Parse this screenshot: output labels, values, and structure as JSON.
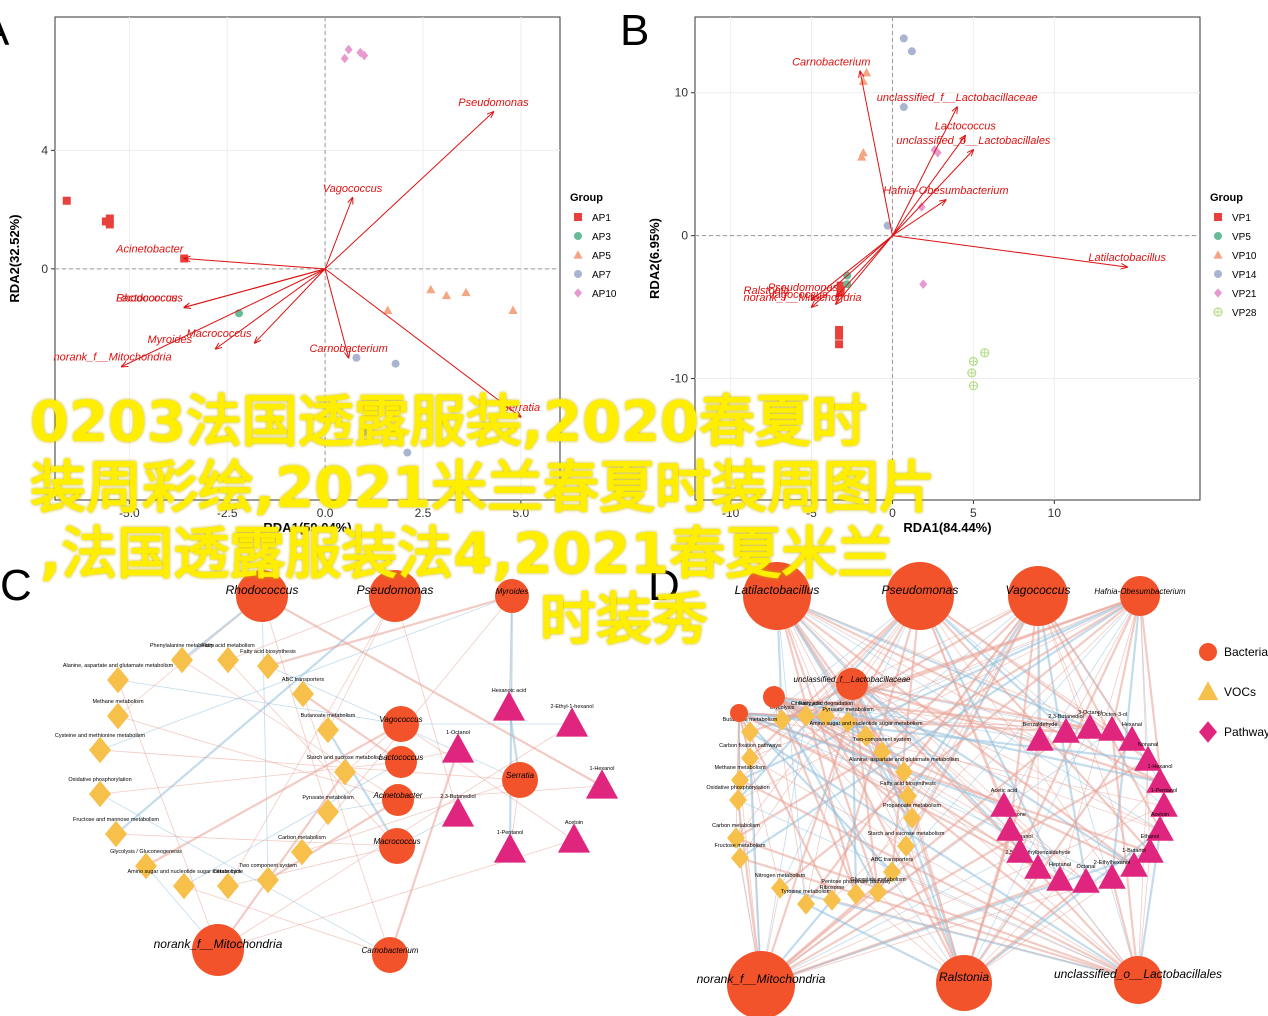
{
  "panels": {
    "A": {
      "label": "A",
      "xlabel": "RDA1(59.04%)",
      "ylabel": "RDA2(32.52%)",
      "xticks": [
        -5.0,
        -2.5,
        0.0,
        2.5,
        5.0
      ],
      "yticks": [
        0,
        4
      ],
      "legend_title": "Group",
      "legend": [
        {
          "name": "AP1",
          "color": "#e8413c",
          "shape": "square"
        },
        {
          "name": "AP3",
          "color": "#66bb99",
          "shape": "circle"
        },
        {
          "name": "AP5",
          "color": "#f4a582",
          "shape": "triangle"
        },
        {
          "name": "AP7",
          "color": "#a9b4d0",
          "shape": "circle"
        },
        {
          "name": "AP10",
          "color": "#e79ad0",
          "shape": "diamond"
        }
      ],
      "vectors": [
        {
          "label": "Pseudomonas",
          "x": 4.3,
          "y": 5.3
        },
        {
          "label": "Vagococcus",
          "x": 0.7,
          "y": 2.4
        },
        {
          "label": "Acinetobacter",
          "x": -3.6,
          "y": 0.35
        },
        {
          "label": "Rhodococcus",
          "x": -3.6,
          "y": -1.3
        },
        {
          "label": "Lactococcus",
          "x": -3.6,
          "y": -1.3
        },
        {
          "label": "Myroides",
          "x": -2.8,
          "y": -2.7
        },
        {
          "label": "Macrococcus",
          "x": -1.8,
          "y": -2.5
        },
        {
          "label": "norank_f__Mitochondria",
          "x": -5.2,
          "y": -3.3
        },
        {
          "label": "Carnobacterium",
          "x": 0.6,
          "y": -3.0
        },
        {
          "label": "Serratia",
          "x": 5.0,
          "y": -5.0
        }
      ],
      "points": [
        {
          "g": "AP1",
          "x": -6.6,
          "y": 2.3
        },
        {
          "g": "AP1",
          "x": -5.6,
          "y": 1.6
        },
        {
          "g": "AP1",
          "x": -5.5,
          "y": 1.7
        },
        {
          "g": "AP1",
          "x": -5.5,
          "y": 1.5
        },
        {
          "g": "AP1",
          "x": -3.6,
          "y": 0.35
        },
        {
          "g": "AP3",
          "x": -2.2,
          "y": -1.5
        },
        {
          "g": "AP5",
          "x": 2.7,
          "y": -0.7
        },
        {
          "g": "AP5",
          "x": 3.1,
          "y": -0.9
        },
        {
          "g": "AP5",
          "x": 3.6,
          "y": -0.8
        },
        {
          "g": "AP5",
          "x": 1.6,
          "y": -1.4
        },
        {
          "g": "AP5",
          "x": 4.8,
          "y": -1.4
        },
        {
          "g": "AP7",
          "x": 0.8,
          "y": -3.0
        },
        {
          "g": "AP7",
          "x": 1.8,
          "y": -3.2
        },
        {
          "g": "AP7",
          "x": 2.1,
          "y": -6.2
        },
        {
          "g": "AP7",
          "x": 1.0,
          "y": -5.5
        },
        {
          "g": "AP10",
          "x": 0.5,
          "y": 7.1
        },
        {
          "g": "AP10",
          "x": 0.6,
          "y": 7.4
        },
        {
          "g": "AP10",
          "x": 0.9,
          "y": 7.3
        },
        {
          "g": "AP10",
          "x": 1.0,
          "y": 7.2
        }
      ]
    },
    "B": {
      "label": "B",
      "xlabel": "RDA1(84.44%)",
      "ylabel": "RDA2(6.95%)",
      "xticks": [
        -10,
        -5,
        0,
        5,
        10
      ],
      "yticks": [
        -10,
        0,
        10
      ],
      "legend_title": "Group",
      "legend": [
        {
          "name": "VP1",
          "color": "#e8413c",
          "shape": "square"
        },
        {
          "name": "VP5",
          "color": "#66bb99",
          "shape": "circle"
        },
        {
          "name": "VP10",
          "color": "#f4a582",
          "shape": "triangle"
        },
        {
          "name": "VP14",
          "color": "#a9b4d0",
          "shape": "circle"
        },
        {
          "name": "VP21",
          "color": "#e79ad0",
          "shape": "diamond"
        },
        {
          "name": "VP28",
          "color": "#b6dc8a",
          "shape": "circleplus"
        }
      ],
      "vectors": [
        {
          "label": "Carnobacterium",
          "x": -2.0,
          "y": 11.5
        },
        {
          "label": "unclassified_f__Lactobacillaceae",
          "x": 4.0,
          "y": 9.0
        },
        {
          "label": "Lactococcus",
          "x": 4.5,
          "y": 7.0
        },
        {
          "label": "unclassified_o__Lactobacillales",
          "x": 5.0,
          "y": 6.0
        },
        {
          "label": "Hafnia-Obesumbacterium",
          "x": 3.3,
          "y": 2.5
        },
        {
          "label": "Latilactobacillus",
          "x": 14.5,
          "y": -2.2
        },
        {
          "label": "Ralstonia",
          "x": -5.0,
          "y": -4.5
        },
        {
          "label": "Pseudomonas",
          "x": -3.5,
          "y": -4.3
        },
        {
          "label": "norank_f__Mitochondria",
          "x": -5.0,
          "y": -5.0
        },
        {
          "label": "Vagococcus",
          "x": -3.5,
          "y": -4.8
        }
      ],
      "points": [
        {
          "g": "VP1",
          "x": -3.2,
          "y": -3.5
        },
        {
          "g": "VP1",
          "x": -3.2,
          "y": -4.0
        },
        {
          "g": "VP1",
          "x": -3.3,
          "y": -6.6
        },
        {
          "g": "VP1",
          "x": -3.3,
          "y": -7.0
        },
        {
          "g": "VP1",
          "x": -3.3,
          "y": -7.6
        },
        {
          "g": "VP5",
          "x": -2.8,
          "y": -2.8
        },
        {
          "g": "VP5",
          "x": -2.8,
          "y": -3.4
        },
        {
          "g": "VP10",
          "x": -1.8,
          "y": 10.8
        },
        {
          "g": "VP10",
          "x": -1.6,
          "y": 11.4
        },
        {
          "g": "VP10",
          "x": -1.8,
          "y": 5.8
        },
        {
          "g": "VP10",
          "x": -1.9,
          "y": 5.5
        },
        {
          "g": "VP14",
          "x": 0.7,
          "y": 13.8
        },
        {
          "g": "VP14",
          "x": 1.2,
          "y": 12.9
        },
        {
          "g": "VP14",
          "x": 0.7,
          "y": 9.0
        },
        {
          "g": "VP14",
          "x": -0.3,
          "y": 0.7
        },
        {
          "g": "VP21",
          "x": 2.6,
          "y": 6.0
        },
        {
          "g": "VP21",
          "x": 2.8,
          "y": 5.8
        },
        {
          "g": "VP21",
          "x": 1.8,
          "y": 2.0
        },
        {
          "g": "VP21",
          "x": 1.9,
          "y": -3.4
        },
        {
          "g": "VP28",
          "x": 5.0,
          "y": -10.5
        },
        {
          "g": "VP28",
          "x": 5.7,
          "y": -8.2
        },
        {
          "g": "VP28",
          "x": 5.0,
          "y": -8.8
        },
        {
          "g": "VP28",
          "x": 4.9,
          "y": -9.6
        }
      ]
    },
    "C": {
      "label": "C",
      "bacteria": [
        {
          "label": "Rhodococcus"
        },
        {
          "label": "Pseudomonas"
        },
        {
          "label": "Myroides"
        },
        {
          "label": "Vagococcus"
        },
        {
          "label": "Lactococcus"
        },
        {
          "label": "Acinetobacter"
        },
        {
          "label": "Macrococcus"
        },
        {
          "label": "Serratia"
        },
        {
          "label": "norank_f__Mitochondria"
        },
        {
          "label": "Carnobacterium"
        }
      ],
      "pathways": [
        {
          "label": "Phenylalanine metabolism"
        },
        {
          "label": "Fatty acid metabolism"
        },
        {
          "label": "Fatty acid biosynthesis"
        },
        {
          "label": "Alanine, aspartate and glutamate metabolism"
        },
        {
          "label": "ABC transporters"
        },
        {
          "label": "Methane metabolism"
        },
        {
          "label": "Butanoate metabolism"
        },
        {
          "label": "Cysteine and methionine metabolism"
        },
        {
          "label": "Starch and sucrose metabolism"
        },
        {
          "label": "Oxidative phosphorylation"
        },
        {
          "label": "Pyruvate metabolism"
        },
        {
          "label": "Fructose and mannose metabolism"
        },
        {
          "label": "Carbon metabolism"
        },
        {
          "label": "Glycolysis / Gluconeogenesis"
        },
        {
          "label": "Amino sugar and nucleotide sugar metabolism"
        },
        {
          "label": "Two component system"
        },
        {
          "label": "Citrate cycle"
        }
      ],
      "vocs": [
        {
          "label": "Hexanoic acid"
        },
        {
          "label": "2-Ethyl-1-hexanol"
        },
        {
          "label": "1-Octanol"
        },
        {
          "label": "1-Hexanol"
        },
        {
          "label": "2,3-Butanediol"
        },
        {
          "label": "1-Pentanol"
        },
        {
          "label": "Acetoin"
        }
      ]
    },
    "D": {
      "label": "D",
      "legend": [
        {
          "name": "Bacteria",
          "color": "#f2532b",
          "shape": "circle"
        },
        {
          "name": "VOCs",
          "color": "#f7c04a",
          "shape": "triangle"
        },
        {
          "name": "Pathway",
          "color": "#e0257e",
          "shape": "diamond"
        }
      ],
      "bacteria": [
        {
          "label": "Latilactobacillus"
        },
        {
          "label": "Pseudomonas"
        },
        {
          "label": "Vagococcus"
        },
        {
          "label": "Hafnia-Obesumbacterium"
        },
        {
          "label": "unclassified_f__Lactobacillaceae"
        },
        {
          "label": "norank_f__Mitochondria"
        },
        {
          "label": "Ralstonia"
        },
        {
          "label": "unclassified_o__Lactobacillales"
        },
        {
          "label": ""
        },
        {
          "label": ""
        }
      ],
      "pathways": [
        {
          "label": "Glycolysis"
        },
        {
          "label": "Citrate cycle"
        },
        {
          "label": "Fatty acid degradation"
        },
        {
          "label": "Pyruvate metabolism"
        },
        {
          "label": "Amino sugar and nucleotide sugar metabolism"
        },
        {
          "label": "Butanoate metabolism"
        },
        {
          "label": "Two-component system"
        },
        {
          "label": "Carbon fixation pathways"
        },
        {
          "label": "Alanine, aspartate and glutamate metabolism"
        },
        {
          "label": "Methane metabolism"
        },
        {
          "label": "Fatty acid biosynthesis"
        },
        {
          "label": "Oxidative phosphorylation"
        },
        {
          "label": "Propanoate metabolism"
        },
        {
          "label": "Carbon metabolism"
        },
        {
          "label": "Starch and sucrose metabolism"
        },
        {
          "label": "ABC transporters"
        },
        {
          "label": "Glyoxylate metabolism"
        },
        {
          "label": "Nitrogen metabolism"
        },
        {
          "label": "Tyrosine metabolism"
        },
        {
          "label": "Ribosome"
        },
        {
          "label": "Pentose phosphate pathway"
        },
        {
          "label": "Fructose metabolism"
        }
      ],
      "vocs": [
        {
          "label": "Benzaldehyde"
        },
        {
          "label": "2,3-Butanediol"
        },
        {
          "label": "3-Octanol"
        },
        {
          "label": "1-Octen-3-ol"
        },
        {
          "label": "Hexanal"
        },
        {
          "label": "Nonanal"
        },
        {
          "label": "1-Hexanol"
        },
        {
          "label": "1-Pentanol"
        },
        {
          "label": "Acetoin"
        },
        {
          "label": "Ethanol"
        },
        {
          "label": "1-Butanol"
        },
        {
          "label": "2-Ethylhexanol"
        },
        {
          "label": "Octanal"
        },
        {
          "label": "Heptanal"
        },
        {
          "label": "2,5-Dimethylbenzaldehyde"
        },
        {
          "label": "1-Nonanol"
        },
        {
          "label": "2-Heptanone"
        },
        {
          "label": "Acetic acid"
        }
      ]
    }
  },
  "overlay_text": [
    "0203法国透露服装,2020春夏时",
    "装周彩绘,2021米兰春夏时装周图片",
    ",法国透露服装法4,2021春夏米兰",
    "时装秀"
  ]
}
